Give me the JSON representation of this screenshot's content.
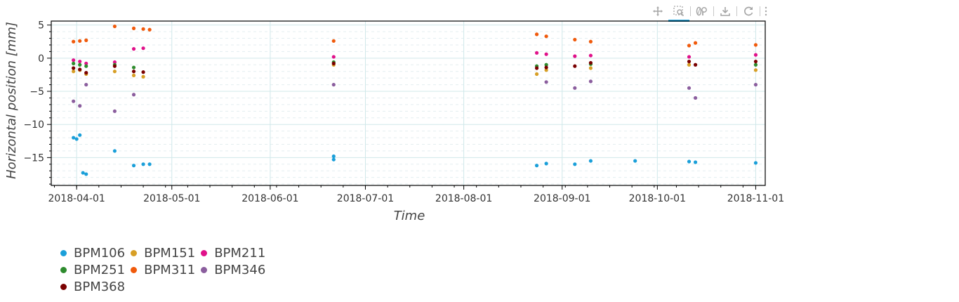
{
  "toolbar": {
    "tools": [
      {
        "name": "pan-tool",
        "icon": "pan-icon",
        "active": false
      },
      {
        "name": "box-zoom-tool",
        "icon": "box-zoom-icon",
        "active": true
      },
      {
        "name": "wheel-zoom-tool",
        "icon": "wheel-zoom-icon",
        "active": false
      },
      {
        "name": "save-tool",
        "icon": "save-icon",
        "active": false
      },
      {
        "name": "reset-tool",
        "icon": "reset-icon",
        "active": false
      },
      {
        "name": "menu-tool",
        "icon": "menu-icon",
        "active": false
      }
    ]
  },
  "chart_data": {
    "type": "scatter",
    "title": "",
    "xlabel": "Time",
    "ylabel": "Horizontal position [mm]",
    "xlim": [
      "2018-03-24",
      "2018-11-04"
    ],
    "ylim": [
      -19.2,
      5.6
    ],
    "x_ticks": [
      "2018-04-01",
      "2018-05-01",
      "2018-06-01",
      "2018-07-01",
      "2018-08-01",
      "2018-09-01",
      "2018-10-01",
      "2018-11-01"
    ],
    "y_ticks": [
      5,
      0,
      -5,
      -10,
      -15
    ],
    "grid": true,
    "legend_position": "bottom-left",
    "series": [
      {
        "name": "BPM106",
        "color": "#1a9fd9",
        "points": [
          {
            "x": "2018-03-31",
            "y": -12.0
          },
          {
            "x": "2018-04-01",
            "y": -12.2
          },
          {
            "x": "2018-04-02",
            "y": -11.6
          },
          {
            "x": "2018-04-03",
            "y": -17.3
          },
          {
            "x": "2018-04-04",
            "y": -17.5
          },
          {
            "x": "2018-04-13",
            "y": -14.0
          },
          {
            "x": "2018-04-19",
            "y": -16.2
          },
          {
            "x": "2018-04-22",
            "y": -16.0
          },
          {
            "x": "2018-04-24",
            "y": -16.0
          },
          {
            "x": "2018-06-21",
            "y": -15.3
          },
          {
            "x": "2018-06-21",
            "y": -14.8
          },
          {
            "x": "2018-08-24",
            "y": -16.2
          },
          {
            "x": "2018-08-27",
            "y": -15.9
          },
          {
            "x": "2018-09-05",
            "y": -16.0
          },
          {
            "x": "2018-09-10",
            "y": -15.5
          },
          {
            "x": "2018-09-24",
            "y": -15.5
          },
          {
            "x": "2018-10-11",
            "y": -15.6
          },
          {
            "x": "2018-10-13",
            "y": -15.7
          },
          {
            "x": "2018-11-01",
            "y": -15.8
          }
        ]
      },
      {
        "name": "BPM151",
        "color": "#d79f26",
        "points": [
          {
            "x": "2018-03-31",
            "y": -2.0
          },
          {
            "x": "2018-04-02",
            "y": -1.8
          },
          {
            "x": "2018-04-04",
            "y": -2.4
          },
          {
            "x": "2018-04-13",
            "y": -2.0
          },
          {
            "x": "2018-04-19",
            "y": -2.6
          },
          {
            "x": "2018-04-22",
            "y": -2.8
          },
          {
            "x": "2018-06-21",
            "y": -1.0
          },
          {
            "x": "2018-08-24",
            "y": -2.4
          },
          {
            "x": "2018-08-27",
            "y": -1.8
          },
          {
            "x": "2018-09-10",
            "y": -1.5
          },
          {
            "x": "2018-10-11",
            "y": -1.0
          },
          {
            "x": "2018-11-01",
            "y": -1.8
          }
        ]
      },
      {
        "name": "BPM211",
        "color": "#e0118a",
        "points": [
          {
            "x": "2018-03-31",
            "y": -0.3
          },
          {
            "x": "2018-04-02",
            "y": -0.5
          },
          {
            "x": "2018-04-04",
            "y": -0.8
          },
          {
            "x": "2018-04-13",
            "y": -0.6
          },
          {
            "x": "2018-04-19",
            "y": 1.4
          },
          {
            "x": "2018-04-22",
            "y": 1.5
          },
          {
            "x": "2018-06-21",
            "y": 0.2
          },
          {
            "x": "2018-08-24",
            "y": 0.8
          },
          {
            "x": "2018-08-27",
            "y": 0.6
          },
          {
            "x": "2018-09-05",
            "y": 0.3
          },
          {
            "x": "2018-09-10",
            "y": 0.4
          },
          {
            "x": "2018-10-11",
            "y": 0.2
          },
          {
            "x": "2018-11-01",
            "y": 0.5
          }
        ]
      },
      {
        "name": "BPM251",
        "color": "#2e8b2e",
        "points": [
          {
            "x": "2018-03-31",
            "y": -0.8
          },
          {
            "x": "2018-04-02",
            "y": -1.0
          },
          {
            "x": "2018-04-04",
            "y": -1.2
          },
          {
            "x": "2018-04-13",
            "y": -1.0
          },
          {
            "x": "2018-04-19",
            "y": -1.4
          },
          {
            "x": "2018-06-21",
            "y": -0.6
          },
          {
            "x": "2018-08-24",
            "y": -1.2
          },
          {
            "x": "2018-08-27",
            "y": -1.0
          },
          {
            "x": "2018-09-10",
            "y": -0.9
          },
          {
            "x": "2018-11-01",
            "y": -1.0
          }
        ]
      },
      {
        "name": "BPM311",
        "color": "#f05a0c",
        "points": [
          {
            "x": "2018-03-31",
            "y": 2.5
          },
          {
            "x": "2018-04-02",
            "y": 2.6
          },
          {
            "x": "2018-04-04",
            "y": 2.7
          },
          {
            "x": "2018-04-13",
            "y": 4.8
          },
          {
            "x": "2018-04-19",
            "y": 4.5
          },
          {
            "x": "2018-04-22",
            "y": 4.4
          },
          {
            "x": "2018-04-24",
            "y": 4.3
          },
          {
            "x": "2018-06-21",
            "y": 2.6
          },
          {
            "x": "2018-08-24",
            "y": 3.6
          },
          {
            "x": "2018-08-27",
            "y": 3.3
          },
          {
            "x": "2018-09-05",
            "y": 2.8
          },
          {
            "x": "2018-09-10",
            "y": 2.5
          },
          {
            "x": "2018-10-11",
            "y": 1.9
          },
          {
            "x": "2018-10-13",
            "y": 2.3
          },
          {
            "x": "2018-11-01",
            "y": 2.0
          }
        ]
      },
      {
        "name": "BPM346",
        "color": "#8b5e9e",
        "points": [
          {
            "x": "2018-03-31",
            "y": -6.5
          },
          {
            "x": "2018-04-02",
            "y": -7.2
          },
          {
            "x": "2018-04-04",
            "y": -4.0
          },
          {
            "x": "2018-04-13",
            "y": -8.0
          },
          {
            "x": "2018-04-19",
            "y": -5.5
          },
          {
            "x": "2018-06-21",
            "y": -4.0
          },
          {
            "x": "2018-08-27",
            "y": -3.6
          },
          {
            "x": "2018-09-05",
            "y": -4.5
          },
          {
            "x": "2018-09-10",
            "y": -3.5
          },
          {
            "x": "2018-10-11",
            "y": -4.5
          },
          {
            "x": "2018-10-13",
            "y": -6.0
          },
          {
            "x": "2018-11-01",
            "y": -4.0
          }
        ]
      },
      {
        "name": "BPM368",
        "color": "#7a0000",
        "points": [
          {
            "x": "2018-03-31",
            "y": -1.5
          },
          {
            "x": "2018-04-02",
            "y": -1.7
          },
          {
            "x": "2018-04-04",
            "y": -2.2
          },
          {
            "x": "2018-04-13",
            "y": -1.2
          },
          {
            "x": "2018-04-19",
            "y": -2.0
          },
          {
            "x": "2018-04-22",
            "y": -2.1
          },
          {
            "x": "2018-06-21",
            "y": -0.8
          },
          {
            "x": "2018-08-24",
            "y": -1.5
          },
          {
            "x": "2018-08-27",
            "y": -1.4
          },
          {
            "x": "2018-09-05",
            "y": -1.2
          },
          {
            "x": "2018-09-10",
            "y": -0.7
          },
          {
            "x": "2018-10-11",
            "y": -0.5
          },
          {
            "x": "2018-10-13",
            "y": -1.0
          },
          {
            "x": "2018-11-01",
            "y": -0.5
          }
        ]
      }
    ]
  }
}
